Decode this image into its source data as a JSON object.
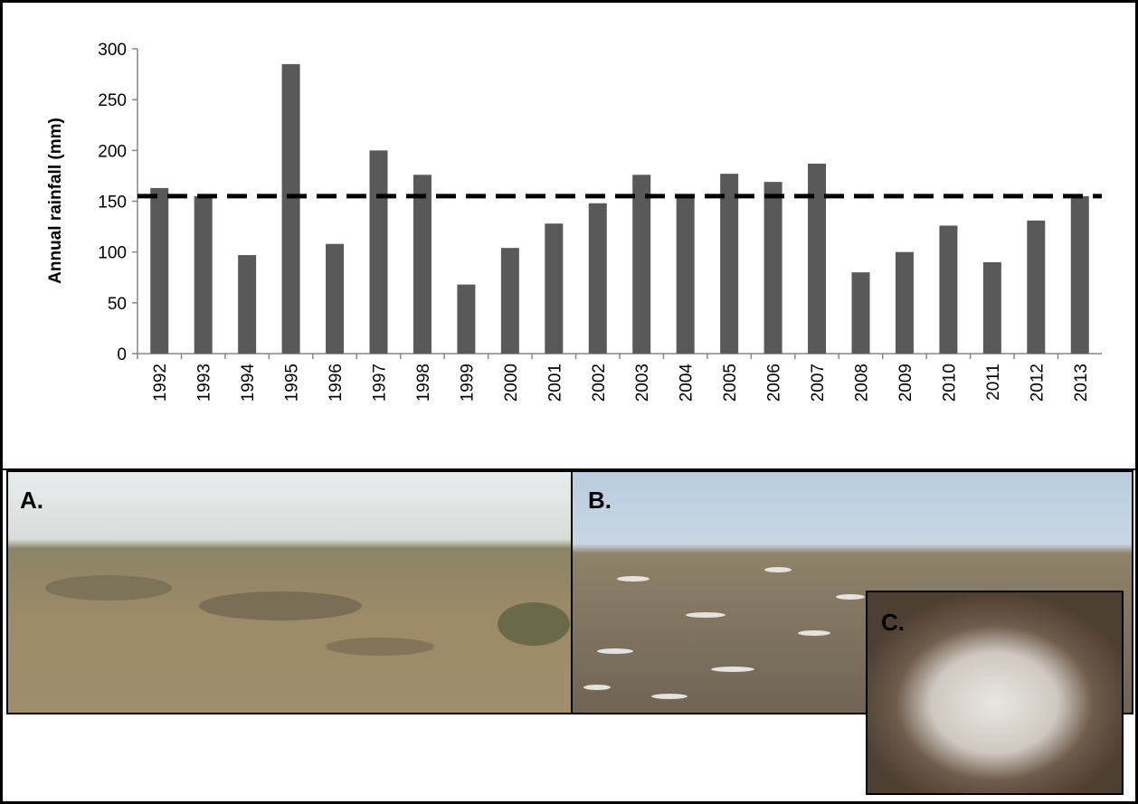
{
  "chart_data": {
    "type": "bar",
    "y_label": "Annual rainfall (mm)",
    "categories": [
      "1992",
      "1993",
      "1994",
      "1995",
      "1996",
      "1997",
      "1998",
      "1999",
      "2000",
      "2001",
      "2002",
      "2003",
      "2004",
      "2005",
      "2006",
      "2007",
      "2008",
      "2009",
      "2010",
      "2011",
      "2012",
      "2013"
    ],
    "values": [
      163,
      155,
      97,
      285,
      108,
      200,
      176,
      68,
      104,
      128,
      148,
      176,
      157,
      177,
      169,
      187,
      80,
      100,
      126,
      90,
      131,
      155
    ],
    "color": "#595959",
    "reference_line": {
      "value": 155,
      "color": "#000000",
      "dashed": true
    },
    "ylim": [
      0,
      300
    ],
    "yticks": [
      0,
      50,
      100,
      150,
      200,
      250,
      300
    ],
    "grid": false
  },
  "panels": [
    {
      "label": "A."
    },
    {
      "label": "B."
    },
    {
      "label": "C."
    }
  ]
}
